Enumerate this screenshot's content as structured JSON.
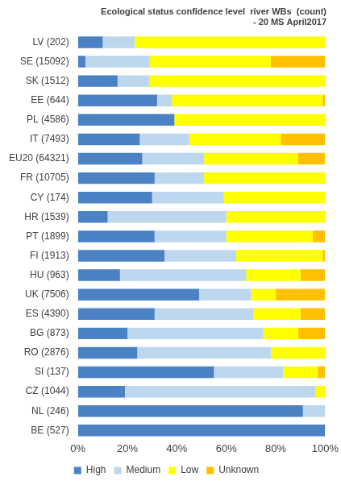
{
  "chart_data": {
    "type": "bar",
    "orientation": "horizontal",
    "stacked": true,
    "title": [
      "Ecological status confidence level  river WBs  (count)",
      "- 20 MS April2017"
    ],
    "categories": [
      "LV (202)",
      "SE (15092)",
      "SK (1512)",
      "EE (644)",
      "PL (4586)",
      "IT (7493)",
      "EU20 (64321)",
      "FR (10705)",
      "CY (174)",
      "HR (1539)",
      "PT (1899)",
      "FI (1913)",
      "HU (963)",
      "UK (7506)",
      "ES (4390)",
      "BG (873)",
      "RO (2876)",
      "SI (137)",
      "CZ (1044)",
      "NL (246)",
      "BE (527)"
    ],
    "series": [
      {
        "name": "High",
        "color": "#4a82c4",
        "values": [
          10,
          3,
          16,
          32,
          39,
          25,
          26,
          31,
          30,
          12,
          31,
          35,
          17,
          49,
          31,
          20,
          24,
          55,
          19,
          91,
          100
        ]
      },
      {
        "name": "Medium",
        "color": "#bdd7ee",
        "values": [
          13,
          26,
          13,
          6,
          0,
          20,
          25,
          20,
          29,
          48,
          29,
          29,
          51,
          21,
          40,
          55,
          54,
          28,
          77,
          9,
          0
        ]
      },
      {
        "name": "Low",
        "color": "#ffff00",
        "values": [
          77,
          49,
          71,
          61,
          61,
          37,
          38,
          49,
          41,
          40,
          35,
          35,
          22,
          10,
          19,
          14,
          22,
          14,
          4,
          0,
          0
        ]
      },
      {
        "name": "Unknown",
        "color": "#ffc000",
        "values": [
          0,
          22,
          0,
          1,
          0,
          18,
          11,
          0,
          0,
          0,
          5,
          1,
          10,
          20,
          10,
          11,
          0,
          3,
          0,
          0,
          0
        ]
      }
    ],
    "xlim": [
      0,
      100
    ],
    "xticks": [
      {
        "value": 0,
        "label": "0%"
      },
      {
        "value": 20,
        "label": "20%"
      },
      {
        "value": 40,
        "label": "40%"
      },
      {
        "value": 60,
        "label": "60%"
      },
      {
        "value": 80,
        "label": "80%"
      },
      {
        "value": 100,
        "label": "100%"
      }
    ],
    "grid": false,
    "legend": "bottom"
  }
}
